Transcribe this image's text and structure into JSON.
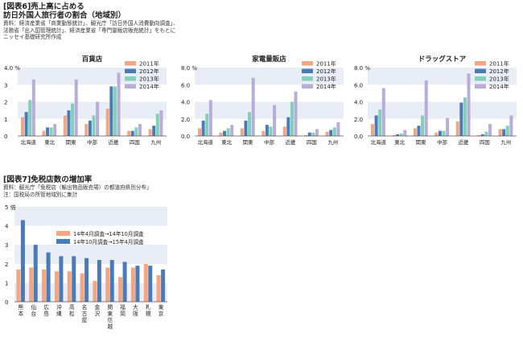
{
  "figure6": {
    "tag": "[図表6]売上高に占める",
    "title": "訪日外国人旅行者の割合（地域別）",
    "notes": [
      "資料：経済産業省「商業動態統計」、観光庁「訪日外国人消費動向調査」、",
      "法務省「出入国管理統計」、経済産業省「専門量販店販売統計」をもとに",
      "ニッセイ基礎研究所作成"
    ]
  },
  "figure7": {
    "title": "[図表7]免税店数の増加率",
    "notes": [
      "資料：観光庁「免税店（輸出物品販売場）の都道府県別分布」",
      "注：国税局の所管地域別に集計"
    ]
  },
  "colors": {
    "s2011": "#f4a582",
    "s2012": "#4a7bb7",
    "s2013": "#7fd1b9",
    "s2014": "#b9acd8",
    "f7a": "#f4a582",
    "f7b": "#4a7bb7",
    "band": "#e9edf5",
    "axis": "#555555"
  },
  "chart_data": [
    {
      "type": "bar",
      "title": "百貨店",
      "ytick_labels": [
        "4.0 %",
        "3",
        "2",
        "1",
        "0"
      ],
      "ylim": [
        0,
        4
      ],
      "categories": [
        "北海道",
        "東北",
        "関東",
        "中部",
        "近畿",
        "四国",
        "九州"
      ],
      "legend": "top-right",
      "series": [
        {
          "name": "2011年",
          "values": [
            1.1,
            0.3,
            1.2,
            0.7,
            1.6,
            0.3,
            0.4
          ]
        },
        {
          "name": "2012年",
          "values": [
            1.4,
            0.5,
            1.5,
            0.9,
            2.9,
            0.3,
            0.6
          ]
        },
        {
          "name": "2013年",
          "values": [
            2.1,
            0.5,
            1.9,
            1.2,
            2.9,
            0.5,
            1.3
          ]
        },
        {
          "name": "2014年",
          "values": [
            3.3,
            0.7,
            3.3,
            2.0,
            3.7,
            0.7,
            1.5
          ]
        }
      ]
    },
    {
      "type": "bar",
      "title": "家電量販店",
      "ytick_labels": [
        "8.0 %",
        "6.0",
        "4.0",
        "2.0",
        "0.0"
      ],
      "ylim": [
        0,
        8
      ],
      "categories": [
        "北海道",
        "東北",
        "関東",
        "中部",
        "近畿",
        "四国",
        "九州"
      ],
      "legend": "top-right",
      "series": [
        {
          "name": "2011年",
          "values": [
            0.9,
            0.4,
            0.9,
            0.6,
            1.1,
            0.1,
            0.5
          ]
        },
        {
          "name": "2012年",
          "values": [
            1.8,
            0.6,
            1.8,
            1.3,
            2.2,
            0.4,
            0.7
          ]
        },
        {
          "name": "2013年",
          "values": [
            2.6,
            0.9,
            2.8,
            1.1,
            4.0,
            0.4,
            1.0
          ]
        },
        {
          "name": "2014年",
          "values": [
            4.2,
            1.3,
            6.8,
            3.6,
            5.2,
            0.8,
            1.6
          ]
        }
      ]
    },
    {
      "type": "bar",
      "title": "ドラッグストア",
      "ytick_labels": [
        "8.0 %",
        "6.0",
        "4.0",
        "2.0",
        "0.0"
      ],
      "ylim": [
        0,
        8
      ],
      "categories": [
        "北海道",
        "東北",
        "関東",
        "中部",
        "近畿",
        "四国",
        "九州"
      ],
      "legend": "top-right",
      "series": [
        {
          "name": "2011年",
          "values": [
            1.4,
            0.1,
            0.9,
            0.4,
            1.7,
            0.1,
            0.8
          ]
        },
        {
          "name": "2012年",
          "values": [
            2.4,
            0.2,
            1.2,
            0.6,
            3.9,
            0.2,
            0.8
          ]
        },
        {
          "name": "2013年",
          "values": [
            3.1,
            0.3,
            2.4,
            0.6,
            4.5,
            0.5,
            1.2
          ]
        },
        {
          "name": "2014年",
          "values": [
            5.6,
            0.7,
            6.5,
            2.1,
            7.3,
            1.4,
            2.4
          ]
        }
      ]
    },
    {
      "type": "bar",
      "title": "",
      "ytick_labels": [
        "5 倍",
        "4",
        "3",
        "2",
        "1",
        "0"
      ],
      "ylim": [
        0,
        5
      ],
      "categories": [
        "熊本",
        "仙台",
        "広島",
        "沖縄",
        "高松",
        "名古屋",
        "金沢",
        "関東信越",
        "福岡",
        "大阪",
        "札幌",
        "東京"
      ],
      "category_lines": [
        [
          "熊",
          "本"
        ],
        [
          "仙",
          "台"
        ],
        [
          "広",
          "島"
        ],
        [
          "沖",
          "縄"
        ],
        [
          "高",
          "松"
        ],
        [
          "名",
          "古",
          "屋"
        ],
        [
          "金",
          "沢"
        ],
        [
          "関",
          "東",
          "信",
          "越"
        ],
        [
          "福",
          "岡"
        ],
        [
          "大",
          "阪"
        ],
        [
          "札",
          "幌"
        ],
        [
          "東",
          "京"
        ]
      ],
      "legend": "top-right",
      "series": [
        {
          "name": "14年4月調査→14年10月調査",
          "values": [
            1.7,
            1.8,
            1.7,
            1.6,
            1.6,
            1.5,
            1.1,
            1.8,
            1.3,
            1.8,
            2.0,
            1.4
          ]
        },
        {
          "name": "14年10月調査→15年4月調査",
          "values": [
            4.3,
            3.0,
            2.6,
            2.4,
            2.4,
            2.3,
            2.2,
            2.2,
            2.1,
            1.9,
            1.9,
            1.7
          ]
        }
      ]
    }
  ]
}
